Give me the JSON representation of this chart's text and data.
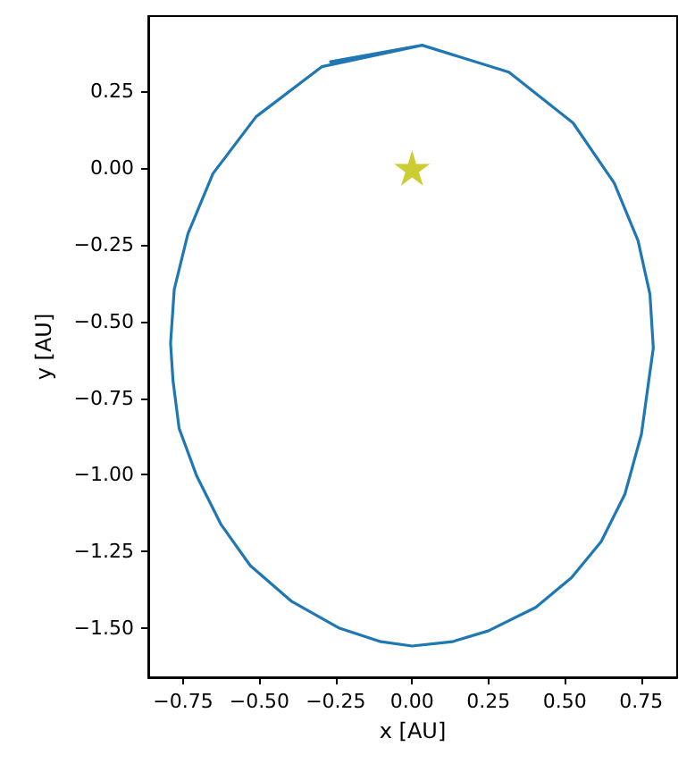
{
  "chart_data": {
    "type": "line",
    "xlabel": "x [AU]",
    "ylabel": "y [AU]",
    "xlim": [
      -0.864,
      0.868
    ],
    "ylim": [
      -1.66,
      0.495
    ],
    "xticks": [
      {
        "value": -0.75,
        "label": "−0.75"
      },
      {
        "value": -0.5,
        "label": "−0.50"
      },
      {
        "value": -0.25,
        "label": "−0.25"
      },
      {
        "value": 0,
        "label": "0.00"
      },
      {
        "value": 0.25,
        "label": "0.25"
      },
      {
        "value": 0.5,
        "label": "0.50"
      },
      {
        "value": 0.75,
        "label": "0.75"
      }
    ],
    "yticks": [
      {
        "value": -1.5,
        "label": "−1.50"
      },
      {
        "value": -1.25,
        "label": "−1.25"
      },
      {
        "value": -1,
        "label": "−1.00"
      },
      {
        "value": -0.75,
        "label": "−0.75"
      },
      {
        "value": -0.5,
        "label": "−0.50"
      },
      {
        "value": -0.25,
        "label": "−0.25"
      },
      {
        "value": 0,
        "label": "0.00"
      },
      {
        "value": 0.25,
        "label": "0.25"
      }
    ],
    "grid": false,
    "series": [
      {
        "color": "#1f77b4",
        "marker": "none",
        "x": [
          -0.267,
          0.033,
          0.317,
          0.527,
          0.662,
          0.74,
          0.779,
          0.79,
          0.775,
          0.751,
          0.697,
          0.619,
          0.522,
          0.405,
          0.249,
          0.132,
          0,
          -0.102,
          -0.238,
          -0.394,
          -0.53,
          -0.627,
          -0.705,
          -0.763,
          -0.783,
          -0.791,
          -0.779,
          -0.734,
          -0.652,
          -0.511,
          -0.296,
          0.033
        ],
        "values": [
          0.346,
          0.4,
          0.312,
          0.147,
          -0.049,
          -0.237,
          -0.412,
          -0.587,
          -0.694,
          -0.868,
          -1.063,
          -1.218,
          -1.335,
          -1.432,
          -1.509,
          -1.544,
          -1.558,
          -1.544,
          -1.5,
          -1.413,
          -1.296,
          -1.16,
          -1.005,
          -0.849,
          -0.694,
          -0.571,
          -0.396,
          -0.214,
          -0.018,
          0.167,
          0.33,
          0.4
        ]
      },
      {
        "type": "scatter",
        "color": "#bfbf00",
        "marker": "star",
        "x": [
          0
        ],
        "values": [
          0
        ]
      }
    ]
  }
}
